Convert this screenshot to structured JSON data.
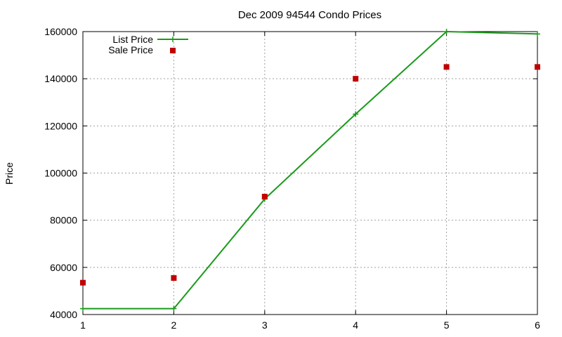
{
  "chart_data": {
    "type": "line",
    "title": "Dec 2009 94544 Condo Prices",
    "xlabel": "",
    "ylabel": "Price",
    "xlim": [
      1,
      6
    ],
    "ylim": [
      40000,
      160000
    ],
    "x_ticks": [
      "1",
      "2",
      "3",
      "4",
      "5",
      "6"
    ],
    "y_ticks": [
      "40000",
      "60000",
      "80000",
      "100000",
      "120000",
      "140000",
      "160000"
    ],
    "grid": true,
    "legend_position": "top-left",
    "series": [
      {
        "name": "List Price",
        "style": "line+cross",
        "color": "#1a9a1a",
        "x": [
          1,
          2,
          3,
          4,
          5,
          6
        ],
        "y": [
          42500,
          42500,
          89000,
          125000,
          160000,
          159000
        ]
      },
      {
        "name": "Sale Price",
        "style": "square",
        "color": "#c00000",
        "x": [
          1,
          2,
          3,
          4,
          5,
          6
        ],
        "y": [
          53500,
          55500,
          90000,
          140000,
          145000,
          145000
        ]
      }
    ]
  }
}
